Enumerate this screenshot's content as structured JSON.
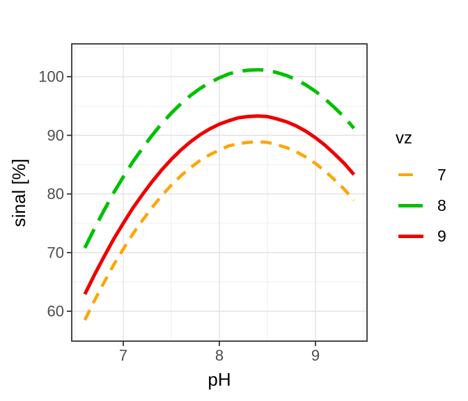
{
  "figure": {
    "background_color": "#FFFFFF",
    "panel_background_color": "#FFFFFF",
    "panel_border_color": "#333333",
    "grid_major_color": "#E2E2E2",
    "grid_minor_color": "#EDEDED",
    "axis_text_color": "#4D4D4D",
    "axis_title_color": "#000000"
  },
  "chart_data": {
    "type": "line",
    "title": "",
    "xlabel": "pH",
    "ylabel": "sinal [%]",
    "legend_title": "vz",
    "legend_position": "right",
    "grid": true,
    "xlim": [
      6.464,
      9.536
    ],
    "ylim": [
      54.9,
      105.6
    ],
    "x_ticks": [
      7,
      8,
      9
    ],
    "x_minor_ticks": [
      6.5,
      7.5,
      8.5,
      9.5
    ],
    "y_ticks": [
      60,
      70,
      80,
      90,
      100
    ],
    "y_minor_ticks": [
      65,
      75,
      85,
      95,
      105
    ],
    "x": [
      6.6,
      6.7,
      6.8,
      6.9,
      7.0,
      7.1,
      7.2,
      7.3,
      7.4,
      7.5,
      7.6,
      7.7,
      7.8,
      7.9,
      8.0,
      8.1,
      8.2,
      8.3,
      8.4,
      8.5,
      8.6,
      8.7,
      8.8,
      8.9,
      9.0,
      9.1,
      9.2,
      9.3,
      9.4
    ],
    "series": [
      {
        "name": "7",
        "color": "#FFA500",
        "linetype": "dashed",
        "dash": [
          16,
          11
        ],
        "width": 4.5,
        "values": [
          58.5,
          61.8,
          64.9,
          67.9,
          70.6,
          73.2,
          75.5,
          77.7,
          79.7,
          81.5,
          83.1,
          84.5,
          85.7,
          86.7,
          87.5,
          88.2,
          88.6,
          88.8,
          88.9,
          88.8,
          88.4,
          87.9,
          87.2,
          86.3,
          85.2,
          83.9,
          82.4,
          80.8,
          78.9
        ]
      },
      {
        "name": "8",
        "color": "#00C000",
        "linetype": "dashed",
        "dash": [
          30,
          14
        ],
        "width": 5,
        "values": [
          70.8,
          74.1,
          77.2,
          80.2,
          82.9,
          85.5,
          87.8,
          90.0,
          92.0,
          93.8,
          95.4,
          96.8,
          98.0,
          99.0,
          99.8,
          100.5,
          100.9,
          101.1,
          101.2,
          101.1,
          100.7,
          100.2,
          99.5,
          98.6,
          97.5,
          96.2,
          94.7,
          93.1,
          91.2
        ]
      },
      {
        "name": "9",
        "color": "#EE0000",
        "linetype": "solid",
        "dash": [],
        "width": 5,
        "values": [
          62.9,
          66.2,
          69.3,
          72.3,
          75.0,
          77.6,
          79.9,
          82.1,
          84.1,
          85.9,
          87.5,
          88.9,
          90.1,
          91.1,
          91.9,
          92.5,
          93.0,
          93.2,
          93.3,
          93.2,
          92.8,
          92.3,
          91.6,
          90.7,
          89.6,
          88.3,
          86.8,
          85.2,
          83.3
        ]
      }
    ]
  }
}
